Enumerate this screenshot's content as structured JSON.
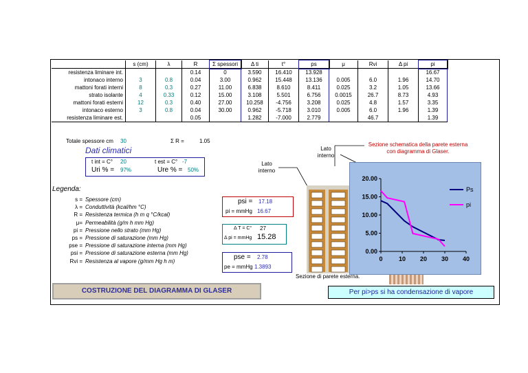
{
  "table": {
    "headers": [
      "",
      "s (cm)",
      "λ",
      "R",
      "Σ spessori",
      "Δ ti",
      "t°",
      "ps",
      "μ",
      "Rvi",
      "Δ pi",
      "pi"
    ],
    "rows": [
      [
        "resistenza liminare int.",
        "",
        "",
        "0.14",
        "0",
        "3.590",
        "16.410",
        "13.928",
        "",
        "",
        "",
        "16.67"
      ],
      [
        "intonaco interno",
        "3",
        "0.8",
        "0.04",
        "3.00",
        "0.962",
        "15.448",
        "13.136",
        "0.005",
        "6.0",
        "1.96",
        "14.70"
      ],
      [
        "mattoni forati interni",
        "8",
        "0.3",
        "0.27",
        "11.00",
        "6.838",
        "8.610",
        "8.411",
        "0.025",
        "3.2",
        "1.05",
        "13.66"
      ],
      [
        "strato isolante",
        "4",
        "0.33",
        "0.12",
        "15.00",
        "3.108",
        "5.501",
        "6.756",
        "0.0015",
        "26.7",
        "8.73",
        "4.93"
      ],
      [
        "mattoni forati esterni",
        "12",
        "0.3",
        "0.40",
        "27.00",
        "10.258",
        "-4.756",
        "3.208",
        "0.025",
        "4.8",
        "1.57",
        "3.35"
      ],
      [
        "intonaco esterno",
        "3",
        "0.8",
        "0.04",
        "30.00",
        "0.962",
        "-5.718",
        "3.010",
        "0.005",
        "6.0",
        "1.96",
        "1.39"
      ],
      [
        "resistenza liminare est.",
        "",
        "",
        "0.05",
        "",
        "1.282",
        "-7.000",
        "2.779",
        "",
        "46.7",
        "",
        "1.39"
      ]
    ],
    "totale_label": "Totale spessore cm",
    "totale_value": "30",
    "sum_r_label": "Σ R =",
    "sum_r_value": "1.05"
  },
  "climatici": {
    "title": "Dati climatici",
    "tint_label": "t int = C°",
    "tint_value": "20",
    "test_label": "t est = C°",
    "test_value": "-7",
    "uri_label": "Uri % =",
    "uri_value": "97%",
    "ure_label": "Ure % =",
    "ure_value": "50%"
  },
  "legenda": {
    "title": "Legenda:",
    "items": [
      {
        "k": "s =",
        "v": "Spessore (cm)"
      },
      {
        "k": "λ =",
        "v": "Conduttività (kcal/hm °C)"
      },
      {
        "k": "R =",
        "v": "Resistenza termica (h m q °C/kcal)"
      },
      {
        "k": "μ=",
        "v": "Permeabilità (g/m h mm Hg)"
      },
      {
        "k": "pi =",
        "v": "Pressione nello strato (mm Hg)"
      },
      {
        "k": "ps =",
        "v": "Pressione di saturazione (mm Hg)"
      },
      {
        "k": "pse =",
        "v": "Pressione di saturazione interna (mm Hg)"
      },
      {
        "k": "psi =",
        "v": "Pressione di saturazione esterna (mm Hg)"
      },
      {
        "k": "Rvi =",
        "v": "Resistenza al vapore (g/mm Hg h m)"
      }
    ]
  },
  "psi_box": {
    "psi_label": "psi =",
    "psi_value": "17.18",
    "pi_label": "pi = mmHg",
    "pi_value": "16.67"
  },
  "dt_box": {
    "dt_label": "Δ T = C°",
    "dt_value": "27",
    "dpi_label": "Δ pi = mmHg",
    "dpi_value": "15.28"
  },
  "pse_box": {
    "pse_label": "pse =",
    "pse_value": "2.78",
    "pe_label": "pe = mmHg",
    "pe_value": "1.3893"
  },
  "diagram": {
    "lato_interno_1": "Lato interno",
    "lato_interno_2": "Lato interno",
    "sezione_title": "Sezione schematica della parete esterna con diagramma di Glaser.",
    "sezione_esterna": "Sezione di parete esterna."
  },
  "buttons": {
    "costruzione": "COSTRUZIONE DEL DIAGRAMMA DI GLASER",
    "condensazione": "Per pi>ps si ha condensazione di vapore"
  },
  "chart_data": {
    "type": "line",
    "x": [
      0,
      3,
      11,
      15,
      27,
      30
    ],
    "series": [
      {
        "name": "Ps",
        "values": [
          13.928,
          13.136,
          8.411,
          6.756,
          3.208,
          3.01
        ],
        "color": "#000080"
      },
      {
        "name": "pi",
        "values": [
          16.67,
          14.7,
          13.66,
          4.93,
          3.35,
          1.39
        ],
        "color": "#ff00ff"
      }
    ],
    "xlim": [
      0,
      40
    ],
    "ylim": [
      0,
      20
    ],
    "xticks": [
      "0",
      "10",
      "20",
      "30",
      "40"
    ],
    "yticks": [
      "0.00",
      "5.00",
      "10.00",
      "15.00",
      "20.00"
    ],
    "legend": "right"
  }
}
